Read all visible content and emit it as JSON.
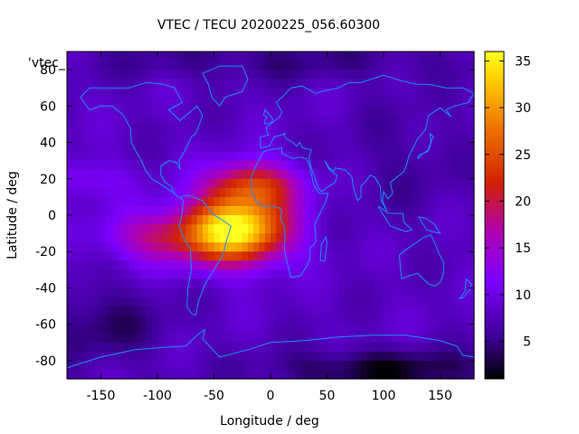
{
  "chart_data": {
    "type": "heatmap",
    "title": "VTEC / TECU 20200225_056.60300",
    "xlabel": "Longitude / deg",
    "ylabel": "Latitude / deg",
    "xlim": [
      -180,
      180
    ],
    "ylim": [
      -90,
      90
    ],
    "xticks": [
      -150,
      -100,
      -50,
      0,
      50,
      100,
      150
    ],
    "yticks": [
      -80,
      -60,
      -40,
      -20,
      0,
      20,
      40,
      60,
      80
    ],
    "key_label": "'vtec_",
    "colorbar": {
      "range": [
        1,
        36
      ],
      "ticks": [
        5,
        10,
        15,
        20,
        25,
        30,
        35
      ],
      "palette": [
        "#000000",
        "#3a0090",
        "#7d00ff",
        "#b000b0",
        "#d22200",
        "#ef7a00",
        "#ffd200",
        "#ffff20"
      ]
    },
    "overlay": "coastlines",
    "coastline_color": "#1e8cff",
    "field": {
      "background": 8,
      "features": [
        {
          "name": "equatorial-crest",
          "lon": -30,
          "lat": -8,
          "amp": 28,
          "sigma_lon": 32,
          "sigma_lat": 13
        },
        {
          "name": "northern-crest",
          "lon": -15,
          "lat": 17,
          "amp": 14,
          "sigma_lon": 28,
          "sigma_lat": 9
        },
        {
          "name": "western-extension",
          "lon": -100,
          "lat": -12,
          "amp": 9,
          "sigma_lon": 35,
          "sigma_lat": 10
        },
        {
          "name": "pacific-band",
          "lon": -170,
          "lat": 20,
          "amp": 4,
          "sigma_lon": 30,
          "sigma_lat": 8
        },
        {
          "name": "south-pacific-low",
          "lon": -150,
          "lat": -60,
          "amp": -4,
          "sigma_lon": 40,
          "sigma_lat": 15
        },
        {
          "name": "southern-ocean-low",
          "lon": 100,
          "lat": -85,
          "amp": -6,
          "sigma_lon": 70,
          "sigma_lat": 8
        },
        {
          "name": "arctic-low",
          "lon": 0,
          "lat": 85,
          "amp": -3,
          "sigma_lon": 120,
          "sigma_lat": 8
        },
        {
          "name": "asia-low",
          "lon": 120,
          "lat": 30,
          "amp": -2,
          "sigma_lon": 40,
          "sigma_lat": 25
        }
      ]
    }
  }
}
